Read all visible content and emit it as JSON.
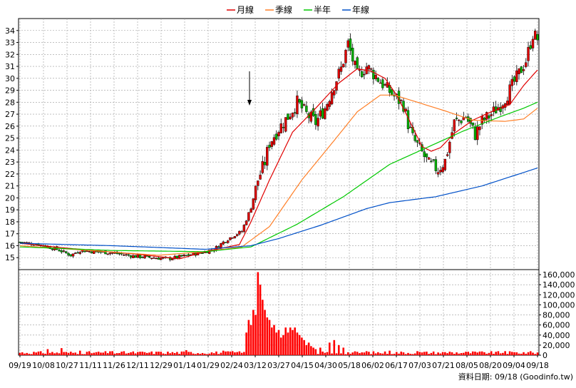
{
  "chart_data": {
    "type": "candlestick",
    "legend_position": "top-center",
    "legend": [
      {
        "name": "月線",
        "color": "#e00000"
      },
      {
        "name": "季線",
        "color": "#ff7f27"
      },
      {
        "name": "半年",
        "color": "#00c800"
      },
      {
        "name": "年線",
        "color": "#0050c8"
      }
    ],
    "price_axis": {
      "min": 14,
      "max": 35,
      "ticks": [
        15,
        16,
        17,
        18,
        19,
        20,
        21,
        22,
        23,
        24,
        25,
        26,
        27,
        28,
        29,
        30,
        31,
        32,
        33,
        34
      ]
    },
    "volume_axis": {
      "min": 0,
      "max": 170000,
      "ticks": [
        0,
        20000,
        40000,
        60000,
        80000,
        100000,
        120000,
        140000,
        160000
      ],
      "tick_labels": [
        "0",
        "20,000",
        "40,000",
        "60,000",
        "80,000",
        "100,000",
        "120,000",
        "140,000",
        "160,000"
      ]
    },
    "x_tick_labels": [
      "09/19",
      "10/08",
      "10/27",
      "11/11",
      "11/26",
      "12/11",
      "12/29",
      "01/14",
      "01/29",
      "02/24",
      "03/12",
      "03/27",
      "04/15",
      "04/30",
      "05/18",
      "06/02",
      "06/17",
      "07/03",
      "07/21",
      "08/05",
      "08/20",
      "09/04",
      "09/18"
    ],
    "grid": true,
    "footer_note": "資料日期: 09/18  (Goodinfo.tw)",
    "colors": {
      "up": "#e00000",
      "down": "#00b000",
      "volume": "#ff0000"
    },
    "price_path": [
      [
        0,
        16.3
      ],
      [
        8,
        16.1
      ],
      [
        16,
        15.7
      ],
      [
        22,
        15.2
      ],
      [
        26,
        15.6
      ],
      [
        32,
        15.5
      ],
      [
        40,
        15.4
      ],
      [
        50,
        15.1
      ],
      [
        58,
        15.0
      ],
      [
        64,
        14.9
      ],
      [
        70,
        15.1
      ],
      [
        78,
        15.4
      ],
      [
        84,
        15.7
      ],
      [
        88,
        16.3
      ],
      [
        92,
        16.8
      ],
      [
        96,
        17.2
      ],
      [
        100,
        19.2
      ],
      [
        103,
        21.5
      ],
      [
        106,
        23.0
      ],
      [
        108,
        24.6
      ],
      [
        112,
        25.8
      ],
      [
        116,
        26.8
      ],
      [
        120,
        28.0
      ],
      [
        124,
        27.0
      ],
      [
        128,
        26.3
      ],
      [
        132,
        27.5
      ],
      [
        136,
        29.5
      ],
      [
        139,
        30.8
      ],
      [
        142,
        32.9
      ],
      [
        146,
        30.2
      ],
      [
        150,
        31.0
      ],
      [
        154,
        30.2
      ],
      [
        158,
        29.3
      ],
      [
        162,
        28.5
      ],
      [
        166,
        27.8
      ],
      [
        168,
        26.2
      ],
      [
        170,
        25.0
      ],
      [
        173,
        24.1
      ],
      [
        177,
        22.8
      ],
      [
        181,
        22.4
      ],
      [
        184,
        23.1
      ],
      [
        188,
        26.3
      ],
      [
        193,
        26.8
      ],
      [
        197,
        25.3
      ],
      [
        200,
        26.4
      ],
      [
        204,
        27.0
      ],
      [
        208,
        27.8
      ],
      [
        212,
        29.0
      ],
      [
        216,
        30.4
      ],
      [
        219,
        31.5
      ],
      [
        222,
        33.7
      ],
      [
        224,
        33.3
      ]
    ],
    "moving_averages": {
      "月線": [
        [
          0,
          16.2
        ],
        [
          20,
          15.8
        ],
        [
          50,
          15.3
        ],
        [
          69,
          14.9
        ],
        [
          80,
          15.5
        ],
        [
          95,
          16.1
        ],
        [
          100,
          18.0
        ],
        [
          108,
          21.5
        ],
        [
          118,
          25.5
        ],
        [
          128,
          27.5
        ],
        [
          138,
          29.6
        ],
        [
          146,
          30.8
        ],
        [
          152,
          30.6
        ],
        [
          158,
          30.0
        ],
        [
          163,
          28.6
        ],
        [
          168,
          26.7
        ],
        [
          174,
          24.3
        ],
        [
          178,
          23.9
        ],
        [
          182,
          24.2
        ],
        [
          188,
          25.4
        ],
        [
          196,
          26.5
        ],
        [
          204,
          27.2
        ],
        [
          212,
          27.8
        ],
        [
          218,
          29.4
        ],
        [
          224,
          30.7
        ]
      ],
      "季線": [
        [
          0,
          16.0
        ],
        [
          30,
          15.6
        ],
        [
          60,
          15.2
        ],
        [
          80,
          15.5
        ],
        [
          96,
          15.9
        ],
        [
          108,
          17.6
        ],
        [
          122,
          21.5
        ],
        [
          136,
          24.8
        ],
        [
          146,
          27.2
        ],
        [
          156,
          28.6
        ],
        [
          162,
          28.6
        ],
        [
          172,
          28.0
        ],
        [
          182,
          27.4
        ],
        [
          196,
          26.5
        ],
        [
          210,
          26.4
        ],
        [
          218,
          26.6
        ],
        [
          224,
          27.5
        ]
      ],
      "半年": [
        [
          0,
          15.9
        ],
        [
          40,
          15.6
        ],
        [
          80,
          15.5
        ],
        [
          100,
          15.9
        ],
        [
          120,
          17.8
        ],
        [
          140,
          20.1
        ],
        [
          160,
          22.8
        ],
        [
          176,
          24.2
        ],
        [
          192,
          25.6
        ],
        [
          208,
          26.8
        ],
        [
          218,
          27.5
        ],
        [
          224,
          28.0
        ]
      ],
      "年線": [
        [
          0,
          16.2
        ],
        [
          40,
          16.0
        ],
        [
          80,
          15.7
        ],
        [
          100,
          16.0
        ],
        [
          112,
          16.6
        ],
        [
          130,
          17.7
        ],
        [
          150,
          19.1
        ],
        [
          160,
          19.6
        ],
        [
          180,
          20.1
        ],
        [
          200,
          21.0
        ],
        [
          224,
          22.5
        ]
      ]
    },
    "volume_spikes": [
      [
        98,
        45000
      ],
      [
        99,
        70000
      ],
      [
        100,
        60000
      ],
      [
        101,
        90000
      ],
      [
        102,
        80000
      ],
      [
        103,
        165000
      ],
      [
        104,
        140000
      ],
      [
        105,
        110000
      ],
      [
        106,
        90000
      ],
      [
        107,
        75000
      ],
      [
        108,
        70000
      ],
      [
        109,
        55000
      ],
      [
        110,
        60000
      ],
      [
        111,
        45000
      ],
      [
        112,
        50000
      ],
      [
        113,
        35000
      ],
      [
        114,
        40000
      ],
      [
        115,
        55000
      ],
      [
        116,
        45000
      ],
      [
        117,
        55000
      ],
      [
        118,
        50000
      ],
      [
        119,
        55000
      ],
      [
        120,
        45000
      ],
      [
        121,
        40000
      ],
      [
        122,
        35000
      ],
      [
        123,
        30000
      ],
      [
        124,
        20000
      ],
      [
        125,
        25000
      ],
      [
        126,
        18000
      ],
      [
        127,
        15000
      ],
      [
        128,
        12000
      ],
      [
        130,
        15000
      ],
      [
        134,
        25000
      ],
      [
        136,
        30000
      ],
      [
        138,
        20000
      ],
      [
        140,
        15000
      ],
      [
        12,
        12000
      ],
      [
        18,
        14000
      ],
      [
        26,
        9000
      ],
      [
        40,
        8000
      ],
      [
        60,
        7000
      ],
      [
        72,
        10000
      ],
      [
        88,
        9000
      ],
      [
        92,
        8000
      ],
      [
        150,
        8000
      ],
      [
        160,
        9000
      ],
      [
        172,
        8000
      ],
      [
        186,
        7000
      ],
      [
        210,
        8000
      ],
      [
        220,
        6000
      ]
    ]
  }
}
